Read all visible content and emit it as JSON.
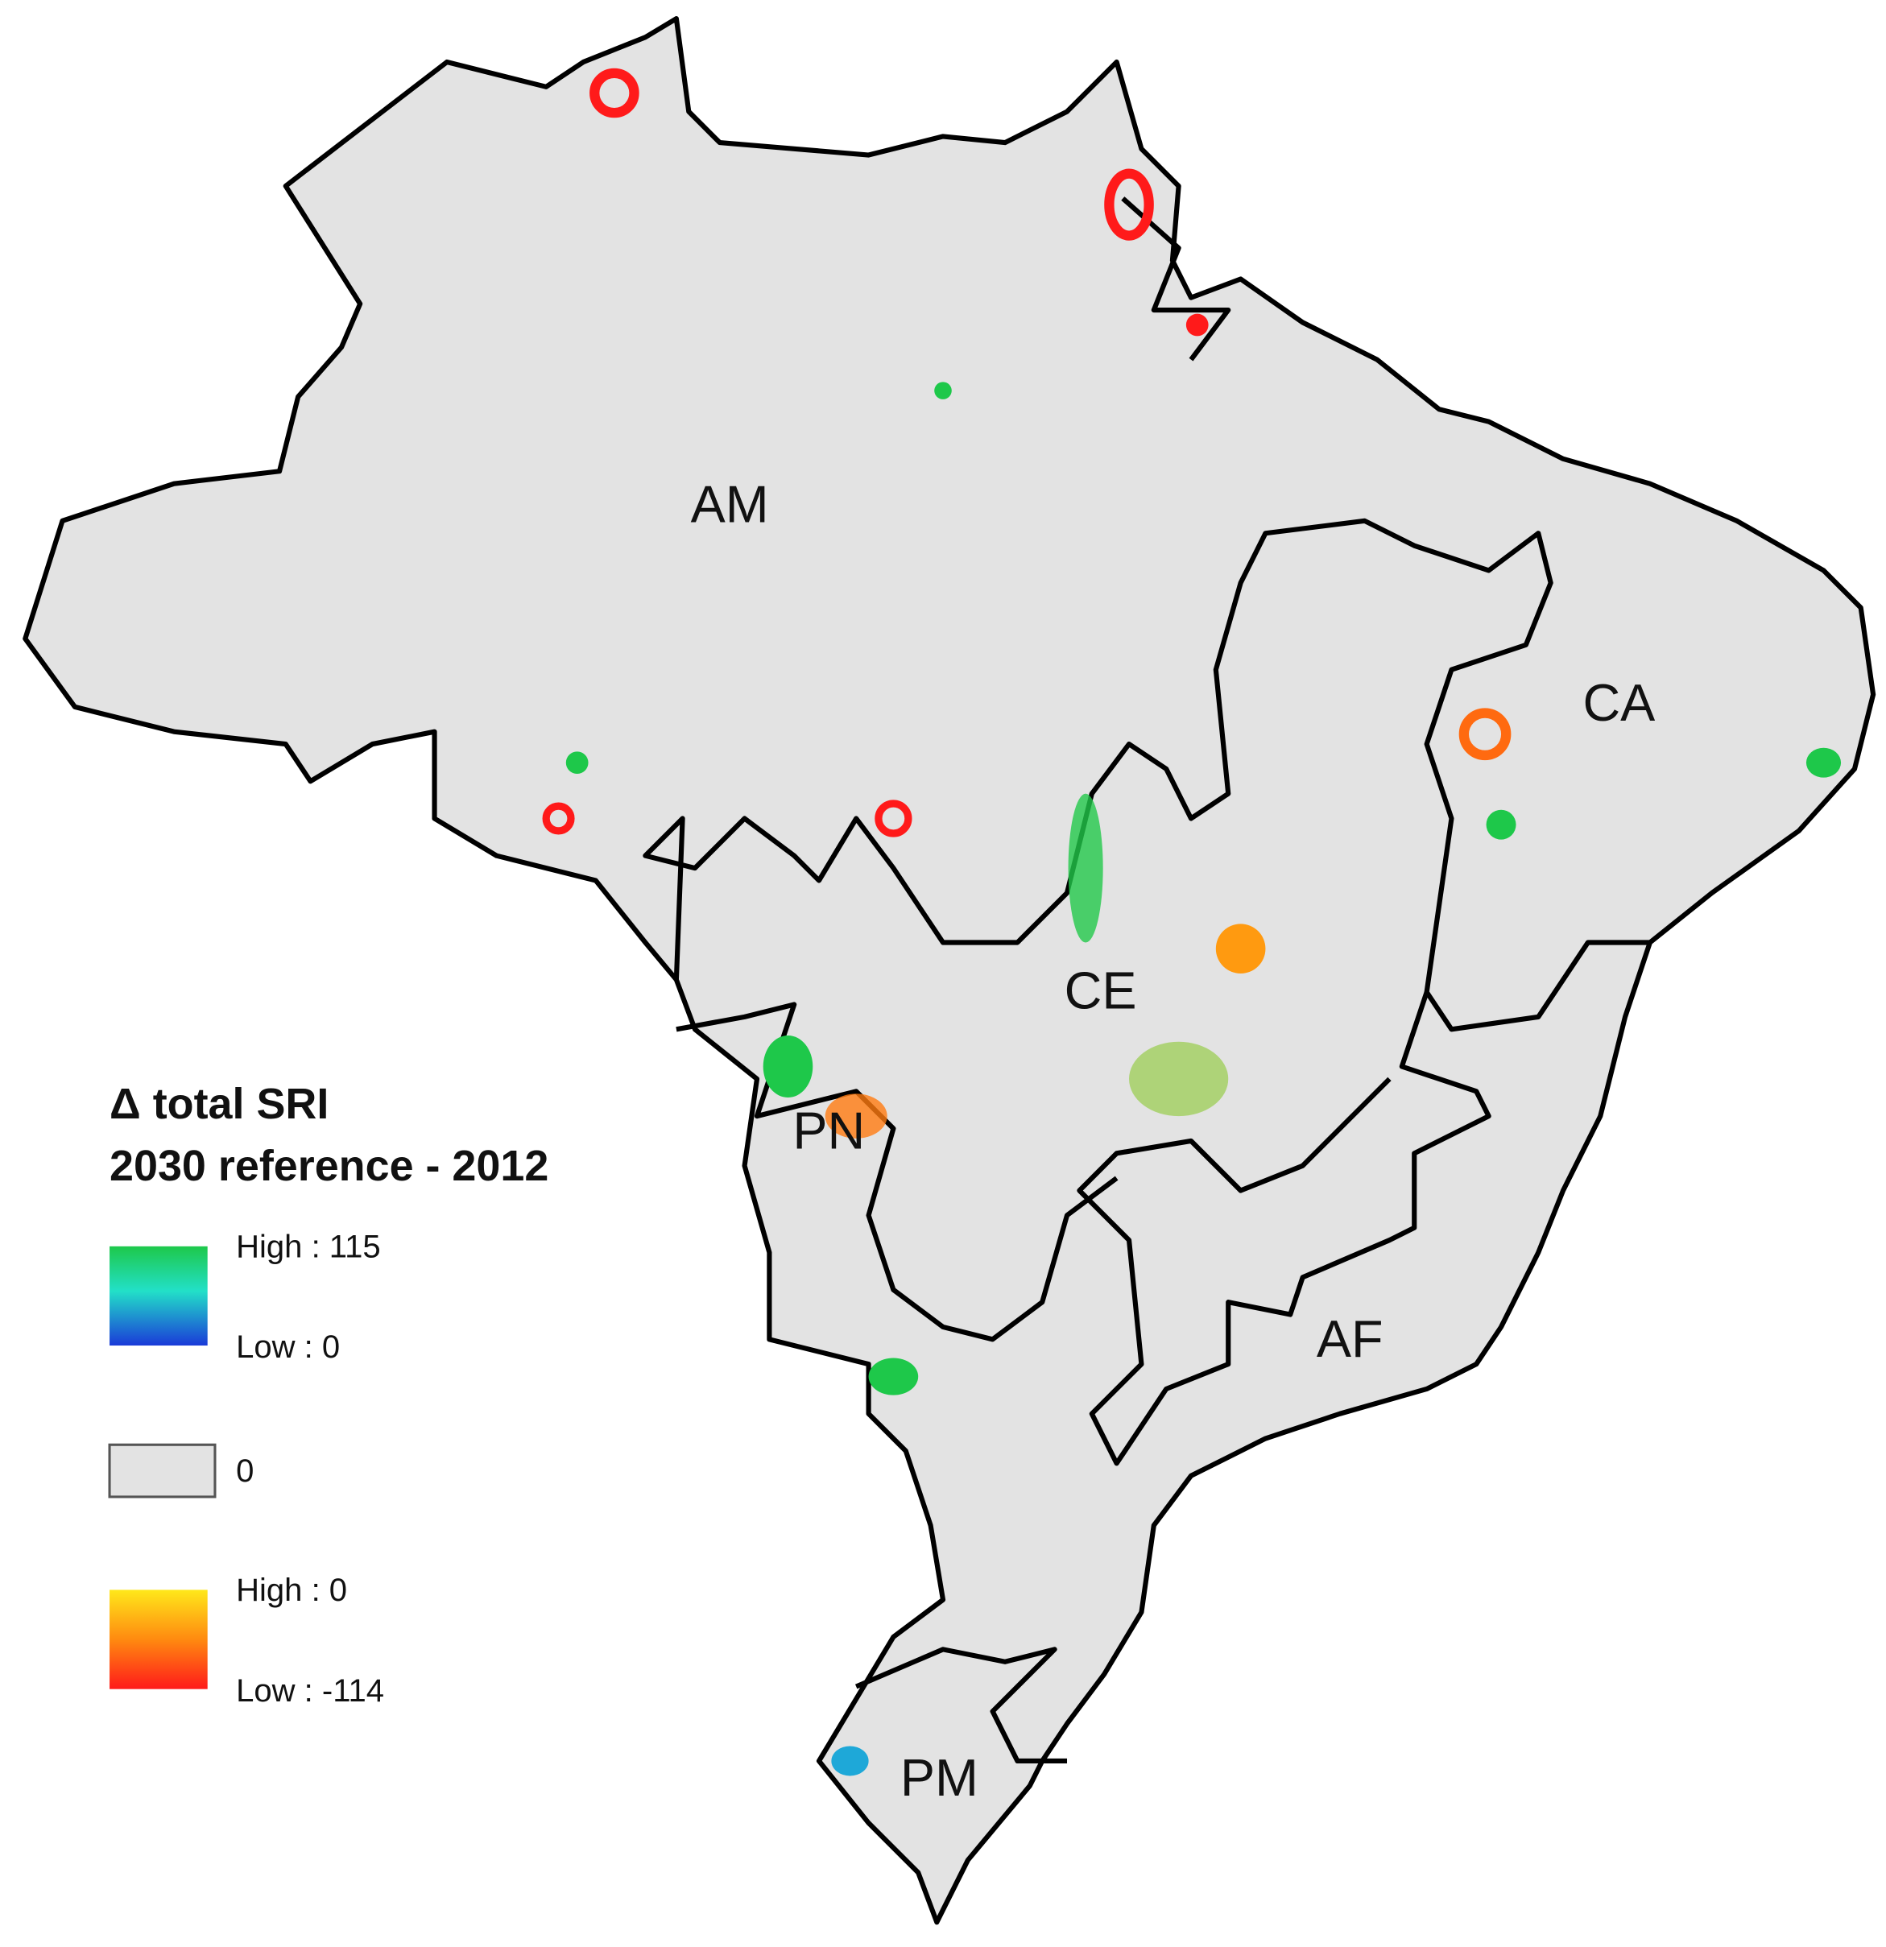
{
  "legend": {
    "title": [
      "Δ total SRI",
      "2030 reference - 2012"
    ],
    "positive": {
      "high": "High : 115",
      "low": "Low : 0"
    },
    "zero": "0",
    "negative": {
      "high": "High : 0",
      "low": "Low : -114"
    }
  },
  "regions": [
    {
      "label": "AM"
    },
    {
      "label": "CA"
    },
    {
      "label": "CE"
    },
    {
      "label": "PN"
    },
    {
      "label": "AF"
    },
    {
      "label": "PM"
    }
  ]
}
